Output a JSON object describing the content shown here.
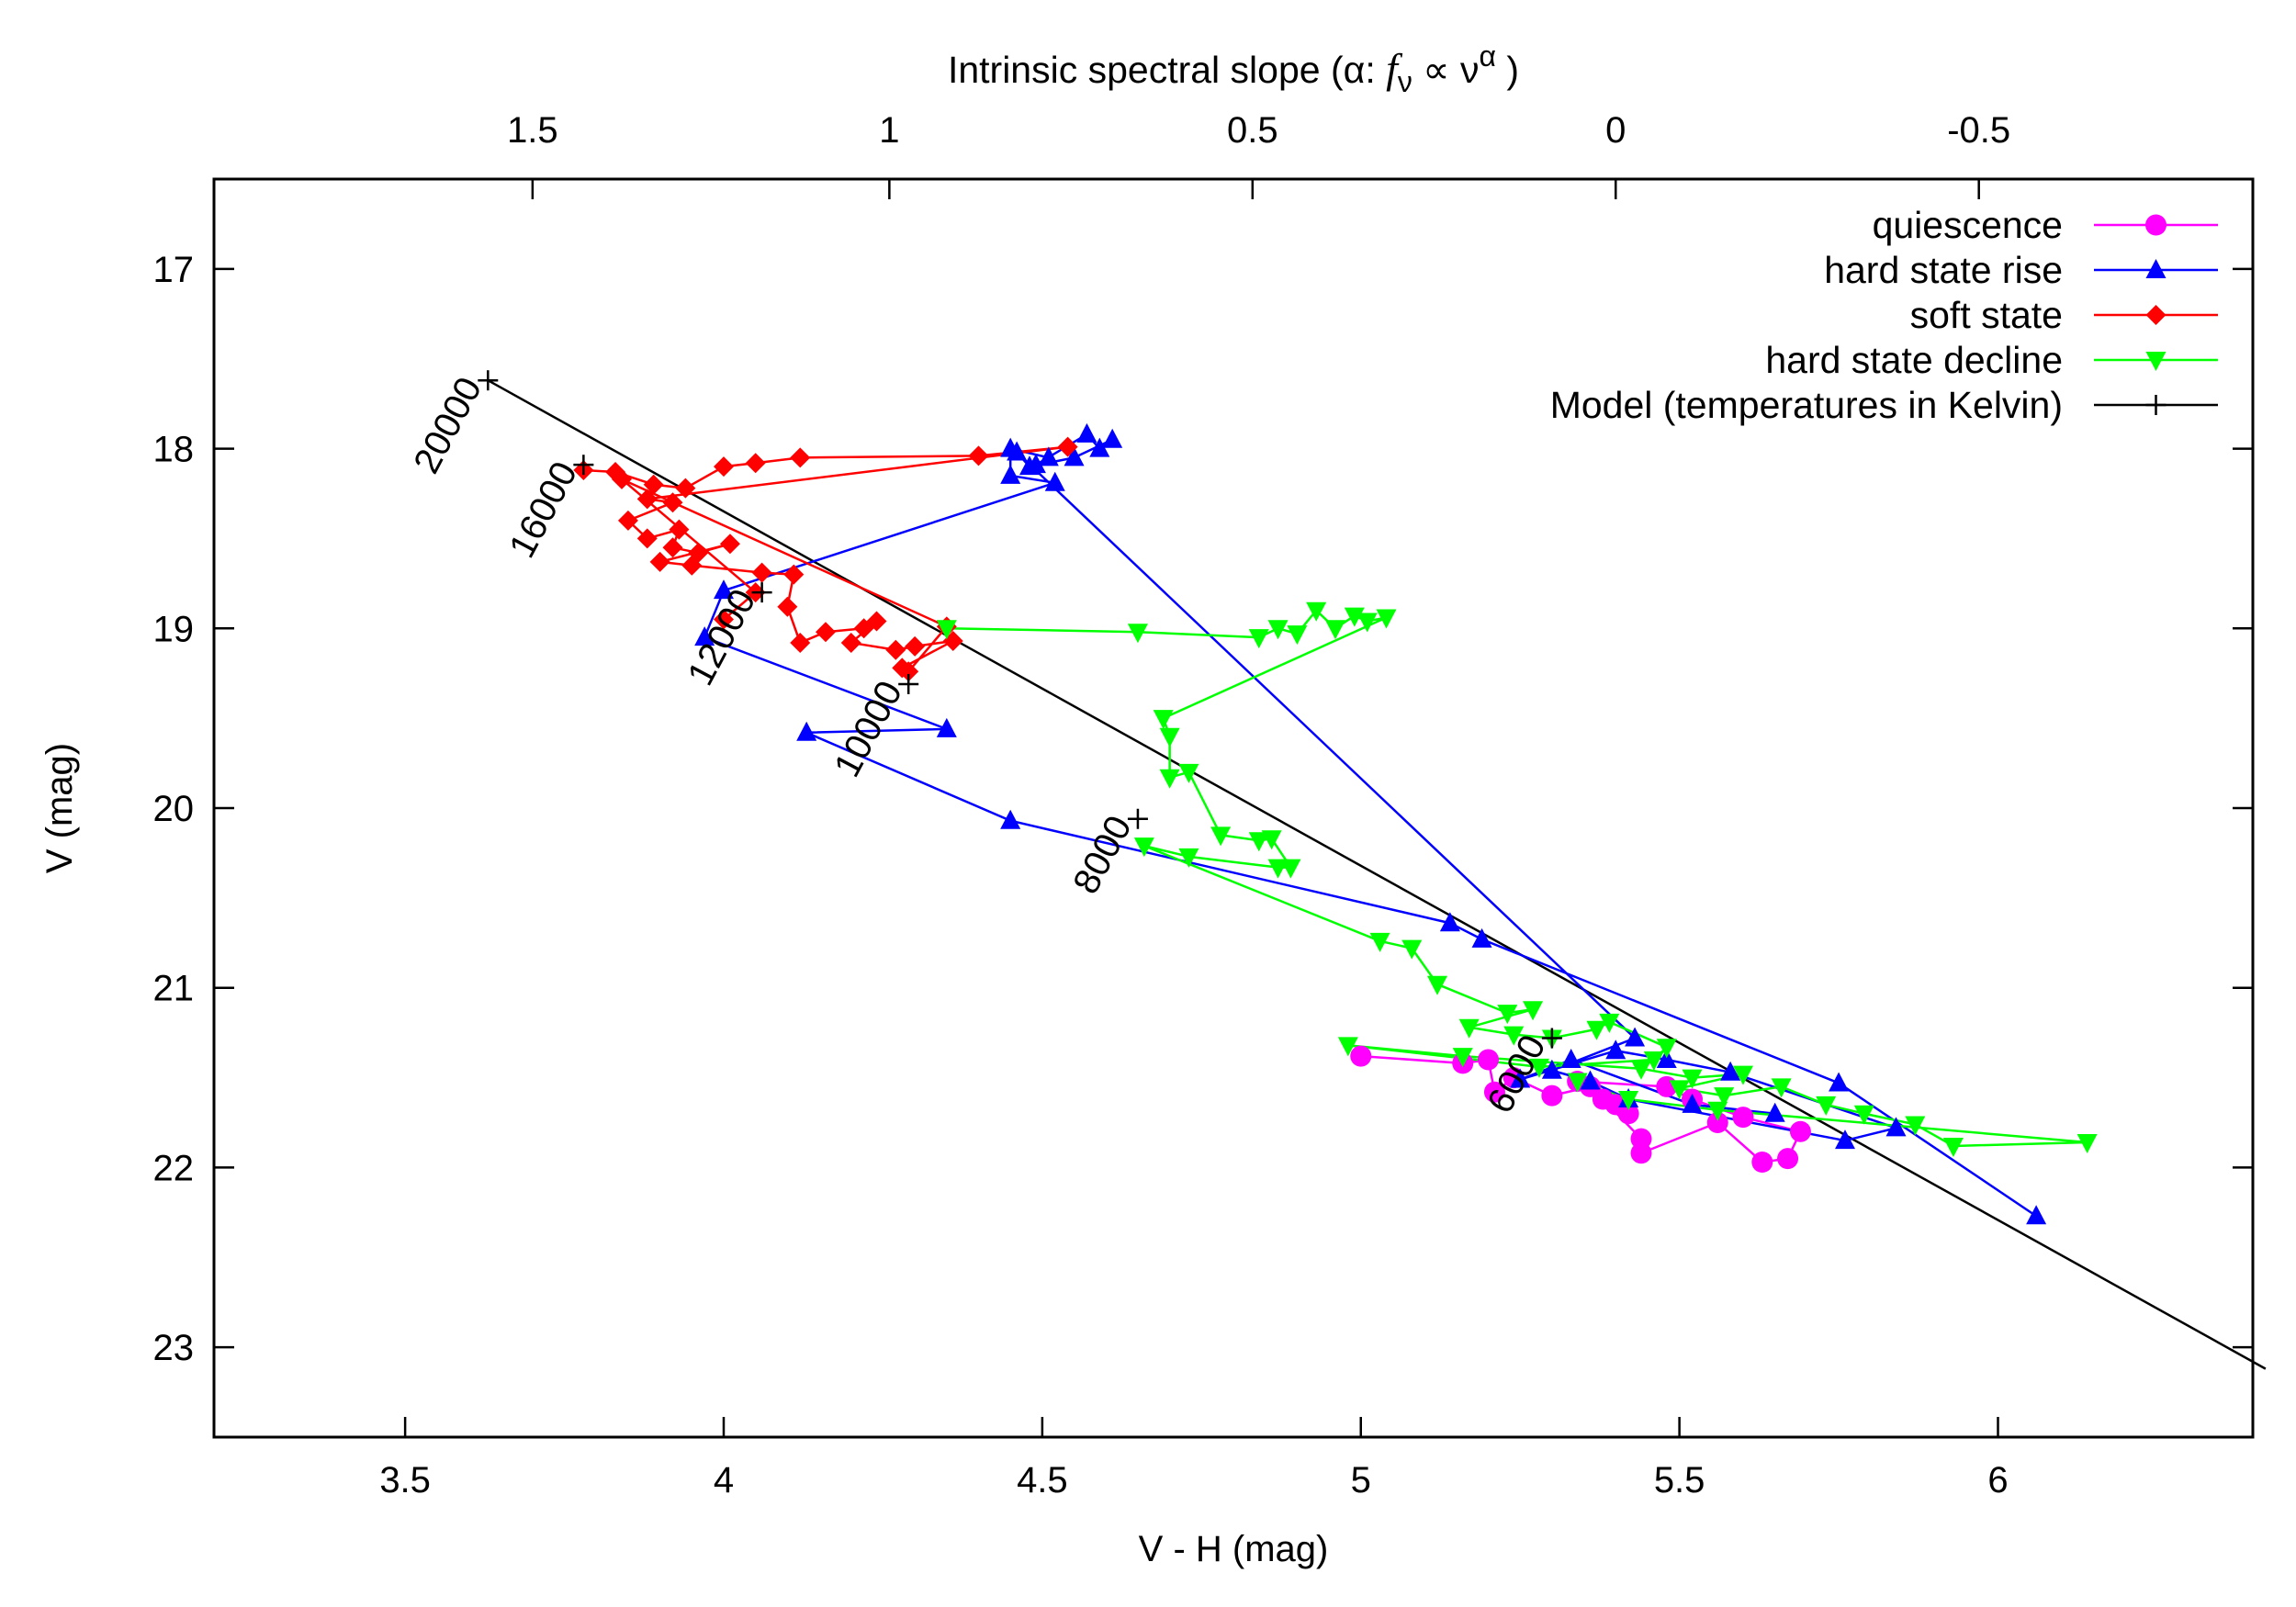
{
  "chart_data": {
    "type": "scatter",
    "title": "",
    "xlabel": "V - H (mag)",
    "ylabel": "V (mag)",
    "x2label": {
      "prefix": "Intrinsic spectral slope (",
      "alpha": "α",
      "colon": ": ",
      "f": "f",
      "nu_sub": "ν",
      "propto": " ∝ ",
      "nu": "ν",
      "alpha_sup": "α",
      "suffix": " )"
    },
    "xlim": [
      3.2,
      6.4
    ],
    "ylim": [
      23.5,
      16.5
    ],
    "x_ticks": [
      "3.5",
      "4",
      "4.5",
      "5",
      "5.5",
      "6"
    ],
    "y_ticks": [
      "17",
      "18",
      "19",
      "20",
      "21",
      "22",
      "23"
    ],
    "x2_ticks": [
      {
        "label": "1.5",
        "vh": 3.7
      },
      {
        "label": "1",
        "vh": 4.26
      },
      {
        "label": "0.5",
        "vh": 4.83
      },
      {
        "label": "0",
        "vh": 5.4
      },
      {
        "label": "-0.5",
        "vh": 5.97
      }
    ],
    "legend_position": "top-right",
    "colors": {
      "quiescence": "#ff00ff",
      "hard_rise": "#0000ff",
      "soft": "#ff0000",
      "hard_decline": "#00ff00",
      "model": "#000000"
    },
    "series": [
      {
        "name": "quiescence",
        "marker": "circle",
        "points": [
          [
            5.0,
            21.38
          ],
          [
            5.16,
            21.42
          ],
          [
            5.2,
            21.4
          ],
          [
            5.21,
            21.58
          ],
          [
            5.24,
            21.5
          ],
          [
            5.3,
            21.6
          ],
          [
            5.36,
            21.55
          ],
          [
            5.4,
            21.65
          ],
          [
            5.42,
            21.7
          ],
          [
            5.38,
            21.62
          ],
          [
            5.44,
            21.84
          ],
          [
            5.44,
            21.92
          ],
          [
            5.56,
            21.75
          ],
          [
            5.63,
            21.97
          ],
          [
            5.67,
            21.95
          ],
          [
            5.69,
            21.8
          ],
          [
            5.6,
            21.72
          ],
          [
            5.52,
            21.62
          ],
          [
            5.48,
            21.55
          ],
          [
            5.34,
            21.52
          ]
        ]
      },
      {
        "name": "hard state rise",
        "marker": "triangle-up",
        "points": [
          [
            6.06,
            22.27
          ],
          [
            5.75,
            21.53
          ],
          [
            5.19,
            20.73
          ],
          [
            5.14,
            20.64
          ],
          [
            4.45,
            20.07
          ],
          [
            4.13,
            19.58
          ],
          [
            4.35,
            19.56
          ],
          [
            3.97,
            19.05
          ],
          [
            4.0,
            18.79
          ],
          [
            4.52,
            18.19
          ],
          [
            4.45,
            18.15
          ],
          [
            4.45,
            18.0
          ],
          [
            4.51,
            18.05
          ],
          [
            4.49,
            18.09
          ],
          [
            4.57,
            17.92
          ],
          [
            4.59,
            18.0
          ],
          [
            4.61,
            17.95
          ],
          [
            4.55,
            18.05
          ],
          [
            4.48,
            18.1
          ],
          [
            4.46,
            18.02
          ],
          [
            5.43,
            21.28
          ],
          [
            5.3,
            21.46
          ],
          [
            5.36,
            21.52
          ],
          [
            5.42,
            21.62
          ],
          [
            5.76,
            21.85
          ],
          [
            5.84,
            21.78
          ],
          [
            5.58,
            21.47
          ],
          [
            5.48,
            21.4
          ],
          [
            5.4,
            21.35
          ],
          [
            5.25,
            21.51
          ],
          [
            5.33,
            21.4
          ],
          [
            5.52,
            21.65
          ],
          [
            5.65,
            21.7
          ]
        ]
      },
      {
        "name": "soft state",
        "marker": "diamond",
        "points": [
          [
            3.78,
            18.12
          ],
          [
            3.83,
            18.13
          ],
          [
            3.89,
            18.2
          ],
          [
            3.94,
            18.22
          ],
          [
            4.0,
            18.1
          ],
          [
            4.05,
            18.08
          ],
          [
            4.12,
            18.05
          ],
          [
            4.4,
            18.04
          ],
          [
            4.54,
            17.99
          ],
          [
            3.88,
            18.28
          ],
          [
            3.92,
            18.3
          ],
          [
            3.85,
            18.4
          ],
          [
            3.88,
            18.5
          ],
          [
            3.93,
            18.45
          ],
          [
            3.92,
            18.55
          ],
          [
            3.96,
            18.58
          ],
          [
            4.01,
            18.53
          ],
          [
            3.9,
            18.63
          ],
          [
            3.95,
            18.65
          ],
          [
            4.06,
            18.69
          ],
          [
            4.11,
            18.7
          ],
          [
            4.1,
            18.88
          ],
          [
            4.12,
            19.08
          ],
          [
            4.16,
            19.02
          ],
          [
            4.22,
            19.0
          ],
          [
            4.24,
            18.96
          ],
          [
            4.2,
            19.08
          ],
          [
            4.27,
            19.12
          ],
          [
            4.3,
            19.1
          ],
          [
            4.36,
            19.07
          ],
          [
            4.28,
            19.22
          ],
          [
            4.29,
            19.24
          ],
          [
            4.35,
            18.99
          ],
          [
            3.84,
            18.17
          ],
          [
            4.05,
            18.8
          ],
          [
            4.0,
            18.95
          ]
        ]
      },
      {
        "name": "hard state decline",
        "marker": "triangle-down",
        "points": [
          [
            4.35,
            19.0
          ],
          [
            4.65,
            19.02
          ],
          [
            4.84,
            19.05
          ],
          [
            4.87,
            19.0
          ],
          [
            4.9,
            19.03
          ],
          [
            4.93,
            18.9
          ],
          [
            4.96,
            19.0
          ],
          [
            4.99,
            18.93
          ],
          [
            5.01,
            18.96
          ],
          [
            5.04,
            18.94
          ],
          [
            4.69,
            19.5
          ],
          [
            4.7,
            19.6
          ],
          [
            4.7,
            19.83
          ],
          [
            4.73,
            19.8
          ],
          [
            4.78,
            20.15
          ],
          [
            4.84,
            20.18
          ],
          [
            4.86,
            20.17
          ],
          [
            4.89,
            20.33
          ],
          [
            4.87,
            20.33
          ],
          [
            4.73,
            20.27
          ],
          [
            4.66,
            20.21
          ],
          [
            5.03,
            20.74
          ],
          [
            5.08,
            20.78
          ],
          [
            5.12,
            20.98
          ],
          [
            5.23,
            21.14
          ],
          [
            5.27,
            21.12
          ],
          [
            5.17,
            21.22
          ],
          [
            5.24,
            21.26
          ],
          [
            5.3,
            21.28
          ],
          [
            5.37,
            21.23
          ],
          [
            5.39,
            21.19
          ],
          [
            5.48,
            21.33
          ],
          [
            5.46,
            21.4
          ],
          [
            5.28,
            21.44
          ],
          [
            4.98,
            21.32
          ],
          [
            5.16,
            21.38
          ],
          [
            5.44,
            21.45
          ],
          [
            5.52,
            21.5
          ],
          [
            5.6,
            21.48
          ],
          [
            5.5,
            21.56
          ],
          [
            5.57,
            21.6
          ],
          [
            5.66,
            21.55
          ],
          [
            5.73,
            21.65
          ],
          [
            5.79,
            21.7
          ],
          [
            5.87,
            21.76
          ],
          [
            5.93,
            21.88
          ],
          [
            6.14,
            21.86
          ],
          [
            5.56,
            21.68
          ],
          [
            5.42,
            21.62
          ],
          [
            5.34,
            21.52
          ]
        ]
      }
    ],
    "model": {
      "name": "Model (temperatures in Kelvin)",
      "line": [
        [
          3.63,
          17.62
        ],
        [
          6.42,
          23.12
        ]
      ],
      "ticks": [
        {
          "label": "20000",
          "x": 3.63,
          "y": 17.62
        },
        {
          "label": "16000",
          "x": 3.78,
          "y": 18.09
        },
        {
          "label": "12000",
          "x": 4.06,
          "y": 18.8
        },
        {
          "label": "10000",
          "x": 4.29,
          "y": 19.31
        },
        {
          "label": "8000",
          "x": 4.65,
          "y": 20.06
        },
        {
          "label": "6000",
          "x": 5.3,
          "y": 21.28
        }
      ]
    }
  }
}
